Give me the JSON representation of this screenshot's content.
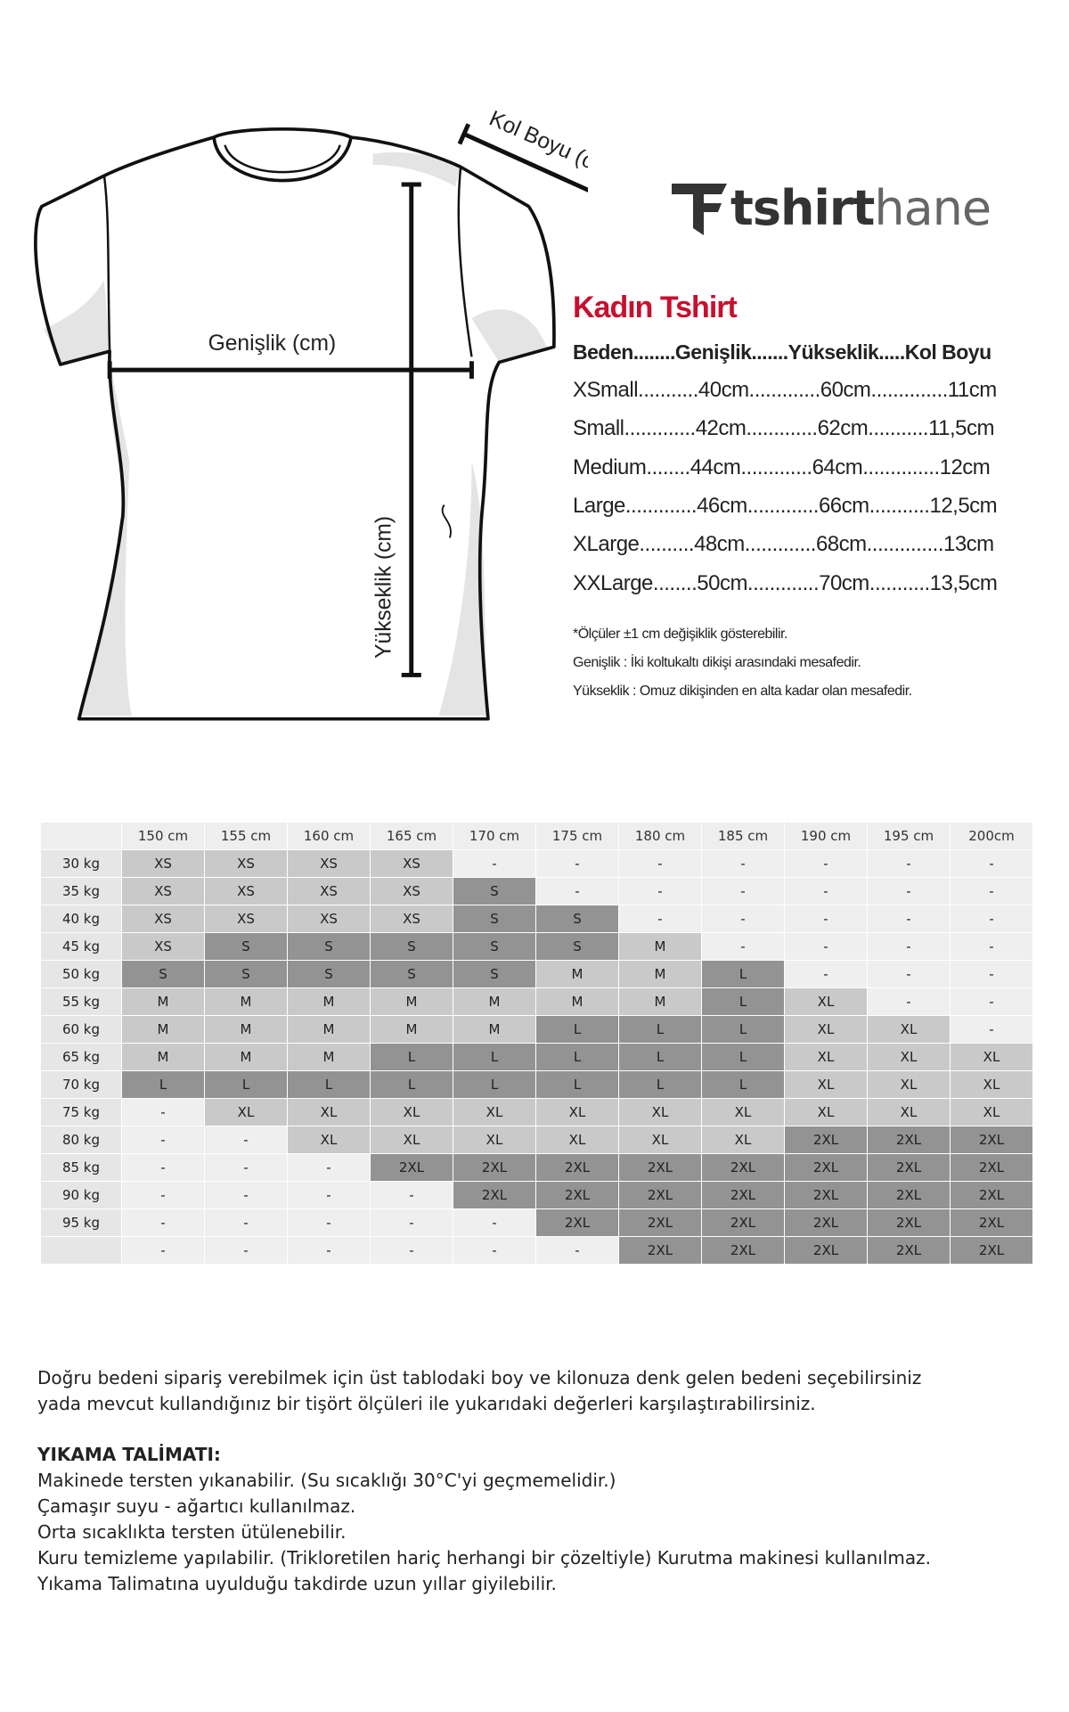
{
  "diagram": {
    "sleeve_label": "Kol Boyu (cm)",
    "width_label": "Genişlik (cm)",
    "height_label": "Yükseklik (cm)"
  },
  "logo": {
    "part1": "tshirt",
    "part2": "hane"
  },
  "size_chart": {
    "title": "Kadın Tshirt",
    "header": "Beden........Genişlik.......Yükseklik.....Kol Boyu",
    "rows": [
      "XSmall...........40cm.............60cm..............11cm",
      "Small.............42cm.............62cm...........11,5cm",
      "Medium........44cm.............64cm..............12cm",
      "Large.............46cm.............66cm...........12,5cm",
      "XLarge..........48cm.............68cm..............13cm",
      "XXLarge........50cm.............70cm...........13,5cm"
    ],
    "notes": [
      "*Ölçüler ±1 cm değişiklik gösterebilir.",
      "Genişlik : İki koltukaltı dikişi arasındaki mesafedir.",
      "Yükseklik : Omuz dikişinden en alta kadar olan mesafedir."
    ]
  },
  "table": {
    "heights": [
      "150 cm",
      "155 cm",
      "160 cm",
      "165 cm",
      "170 cm",
      "175 cm",
      "180 cm",
      "185 cm",
      "190 cm",
      "195 cm",
      "200cm"
    ],
    "rows": [
      {
        "weight": "30 kg",
        "cells": [
          "XS",
          "XS",
          "XS",
          "XS",
          "-",
          "-",
          "-",
          "-",
          "-",
          "-",
          "-"
        ]
      },
      {
        "weight": "35 kg",
        "cells": [
          "XS",
          "XS",
          "XS",
          "XS",
          "S",
          "-",
          "-",
          "-",
          "-",
          "-",
          "-"
        ]
      },
      {
        "weight": "40 kg",
        "cells": [
          "XS",
          "XS",
          "XS",
          "XS",
          "S",
          "S",
          "-",
          "-",
          "-",
          "-",
          "-"
        ]
      },
      {
        "weight": "45 kg",
        "cells": [
          "XS",
          "S",
          "S",
          "S",
          "S",
          "S",
          "M",
          "-",
          "-",
          "-",
          "-"
        ]
      },
      {
        "weight": "50 kg",
        "cells": [
          "S",
          "S",
          "S",
          "S",
          "S",
          "M",
          "M",
          "L",
          "-",
          "-",
          "-"
        ]
      },
      {
        "weight": "55 kg",
        "cells": [
          "M",
          "M",
          "M",
          "M",
          "M",
          "M",
          "M",
          "L",
          "XL",
          "-",
          "-"
        ]
      },
      {
        "weight": "60 kg",
        "cells": [
          "M",
          "M",
          "M",
          "M",
          "M",
          "L",
          "L",
          "L",
          "XL",
          "XL",
          "-"
        ]
      },
      {
        "weight": "65 kg",
        "cells": [
          "M",
          "M",
          "M",
          "L",
          "L",
          "L",
          "L",
          "L",
          "XL",
          "XL",
          "XL"
        ]
      },
      {
        "weight": "70 kg",
        "cells": [
          "L",
          "L",
          "L",
          "L",
          "L",
          "L",
          "L",
          "L",
          "XL",
          "XL",
          "XL"
        ]
      },
      {
        "weight": "75 kg",
        "cells": [
          "-",
          "XL",
          "XL",
          "XL",
          "XL",
          "XL",
          "XL",
          "XL",
          "XL",
          "XL",
          "XL"
        ]
      },
      {
        "weight": "80 kg",
        "cells": [
          "-",
          "-",
          "XL",
          "XL",
          "XL",
          "XL",
          "XL",
          "XL",
          "2XL",
          "2XL",
          "2XL"
        ]
      },
      {
        "weight": "85 kg",
        "cells": [
          "-",
          "-",
          "-",
          "2XL",
          "2XL",
          "2XL",
          "2XL",
          "2XL",
          "2XL",
          "2XL",
          "2XL"
        ]
      },
      {
        "weight": "90 kg",
        "cells": [
          "-",
          "-",
          "-",
          "-",
          "2XL",
          "2XL",
          "2XL",
          "2XL",
          "2XL",
          "2XL",
          "2XL"
        ]
      },
      {
        "weight": "95 kg",
        "cells": [
          "-",
          "-",
          "-",
          "-",
          "-",
          "2XL",
          "2XL",
          "2XL",
          "2XL",
          "2XL",
          "2XL"
        ]
      },
      {
        "weight": null,
        "cells": [
          "-",
          "-",
          "-",
          "-",
          "-",
          "-",
          "2XL",
          "2XL",
          "2XL",
          "2XL",
          "2XL"
        ]
      }
    ]
  },
  "footer": {
    "intro": [
      "Doğru bedeni sipariş verebilmek için üst tablodaki  boy ve kilonuza denk gelen bedeni seçebilirsiniz",
      "yada mevcut kullandığınız bir tişört ölçüleri ile yukarıdaki değerleri karşılaştırabilirsiniz."
    ],
    "wash_title": "YIKAMA TALİMATI:",
    "wash_lines": [
      "Makinede tersten yıkanabilir. (Su sıcaklığı 30°C'yi geçmemelidir.)",
      "Çamaşır suyu - ağartıcı kullanılmaz.",
      "Orta sıcaklıkta tersten ütülenebilir.",
      "Kuru temizleme yapılabilir. (Trikloretilen hariç herhangi bir çözeltiyle) Kurutma makinesi kullanılmaz.",
      "Yıkama Talimatına uyulduğu takdirde uzun yıllar giyilebilir."
    ]
  }
}
